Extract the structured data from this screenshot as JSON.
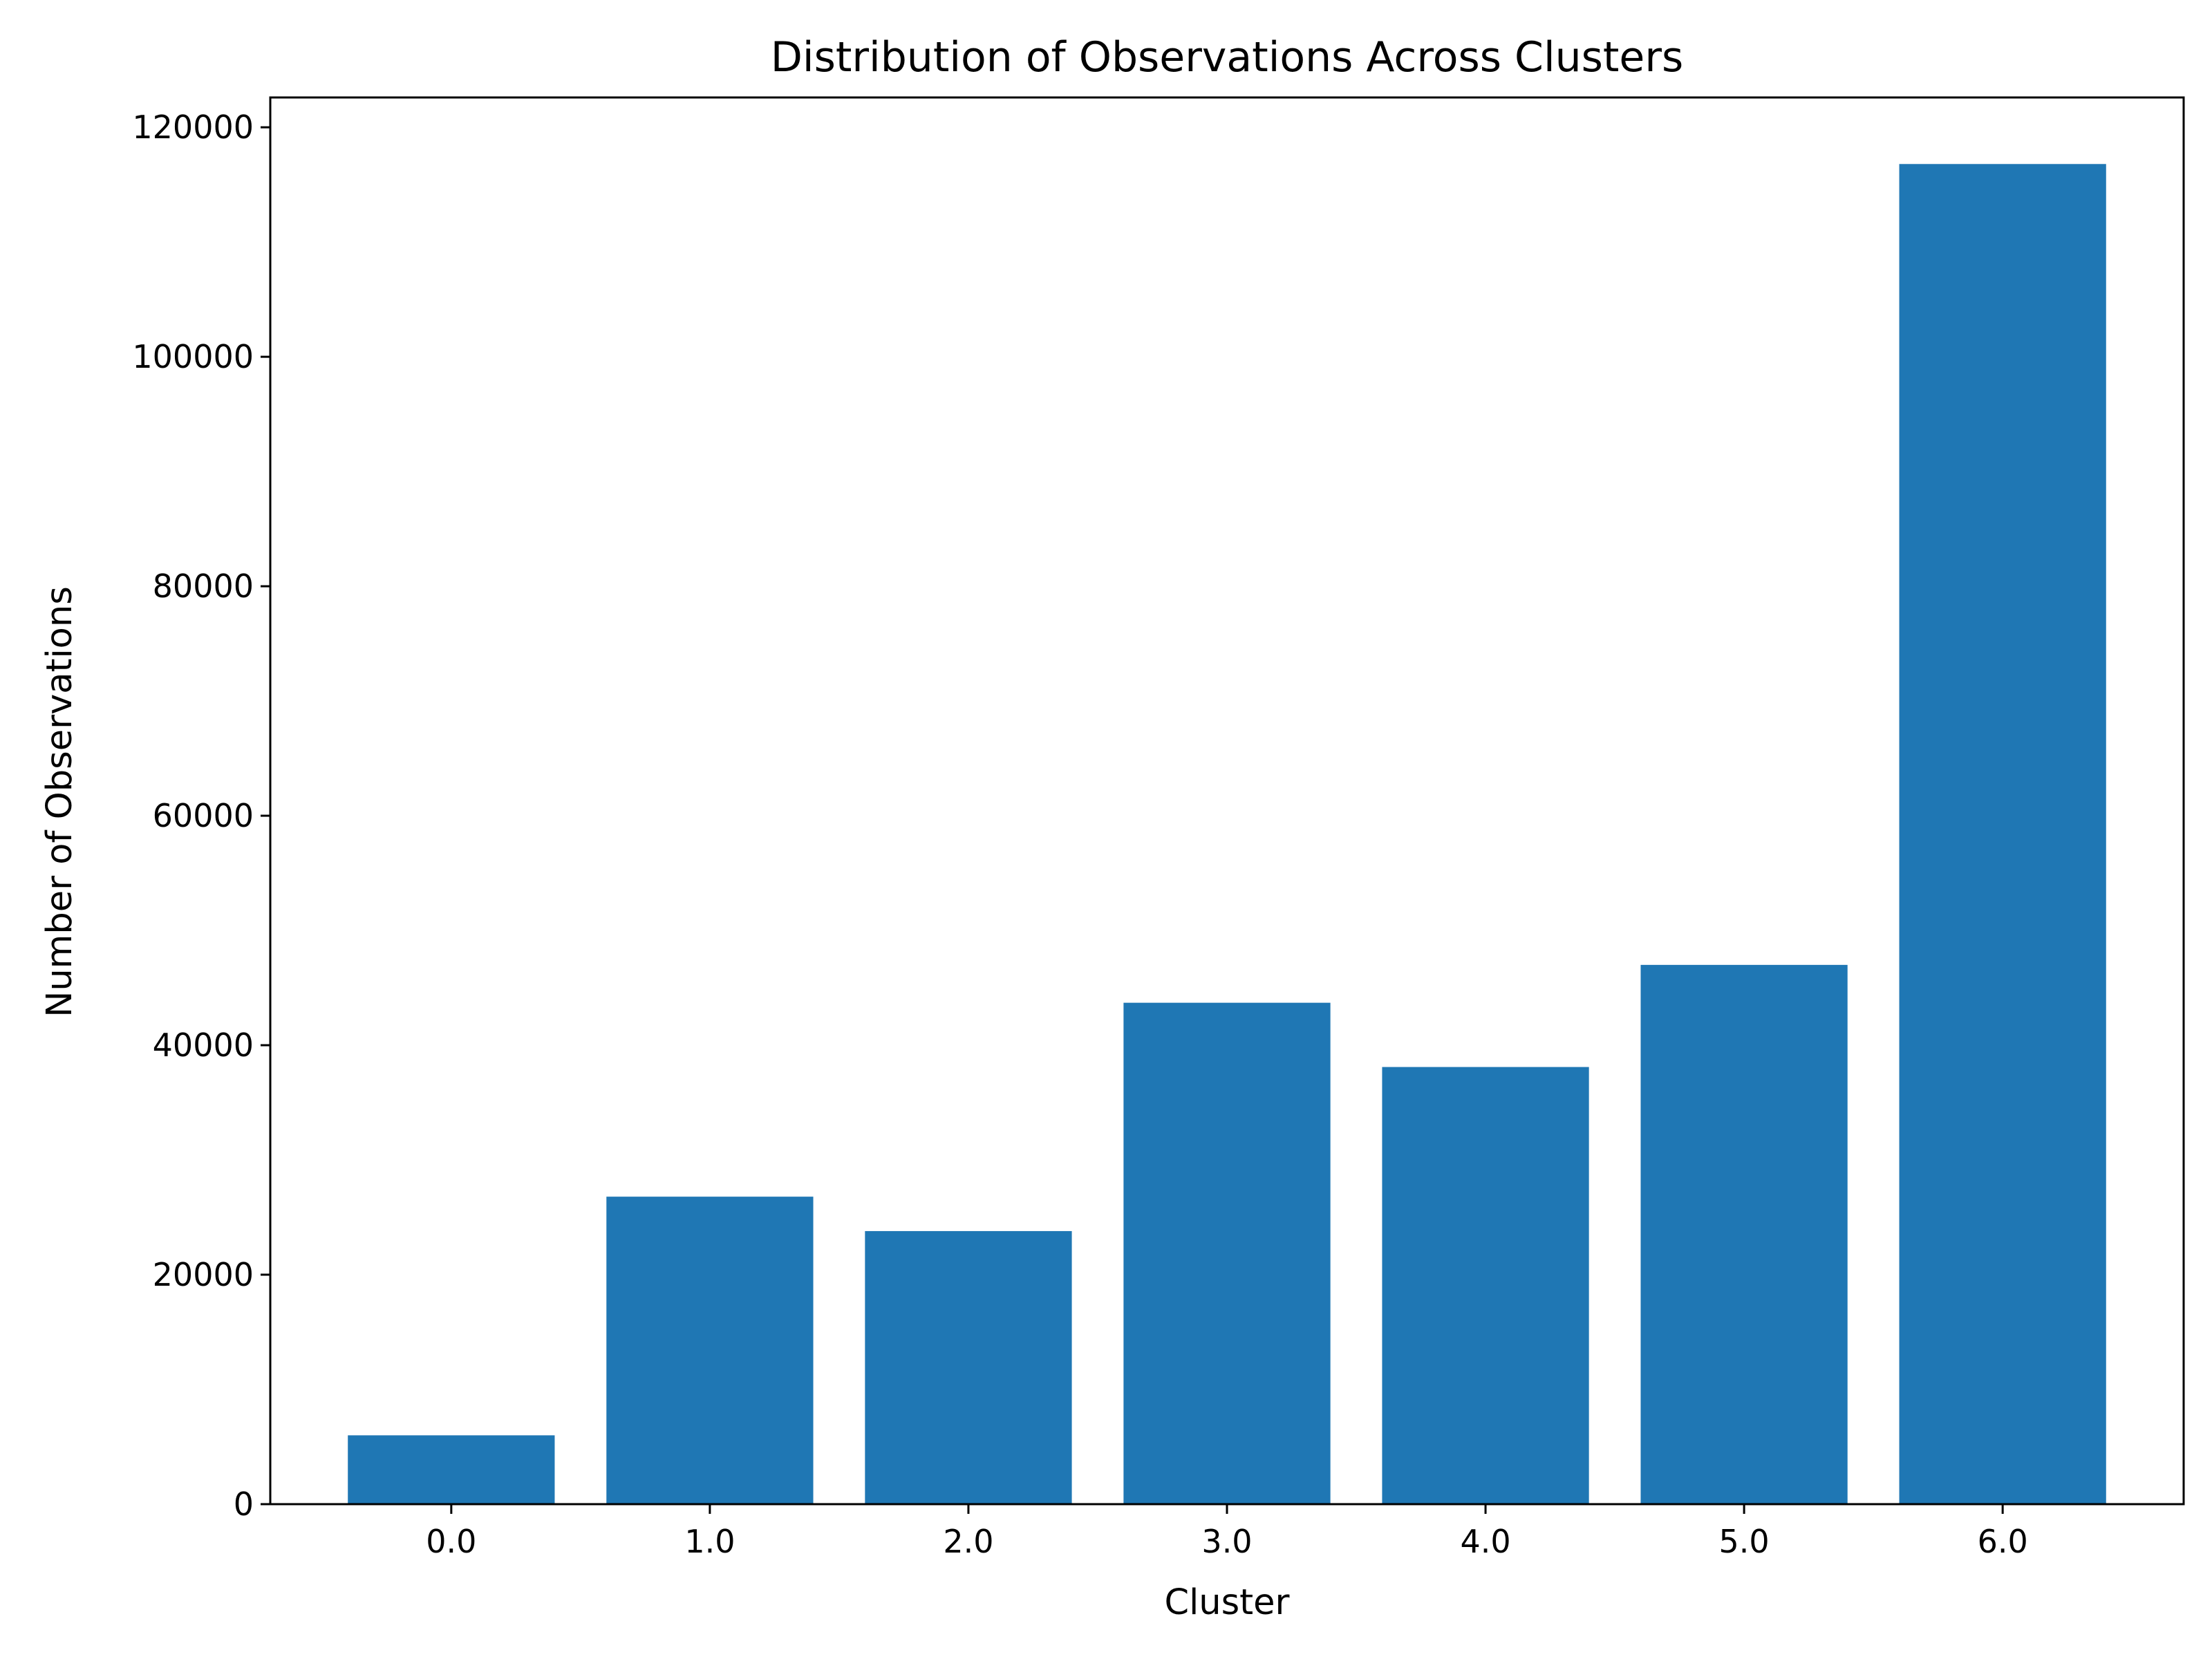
{
  "chart_data": {
    "type": "bar",
    "title": "Distribution of Observations Across Clusters",
    "xlabel": "Cluster",
    "ylabel": "Number of Observations",
    "categories": [
      "0.0",
      "1.0",
      "2.0",
      "3.0",
      "4.0",
      "5.0",
      "6.0"
    ],
    "values": [
      6000,
      26800,
      23800,
      43700,
      38100,
      47000,
      116800
    ],
    "ylim": [
      0,
      122600
    ],
    "yticks": [
      0,
      20000,
      40000,
      60000,
      80000,
      100000,
      120000
    ],
    "ytick_labels": [
      "0",
      "20000",
      "40000",
      "60000",
      "80000",
      "100000",
      "120000"
    ],
    "bar_color": "#1f77b4",
    "grid": false,
    "legend": null
  }
}
